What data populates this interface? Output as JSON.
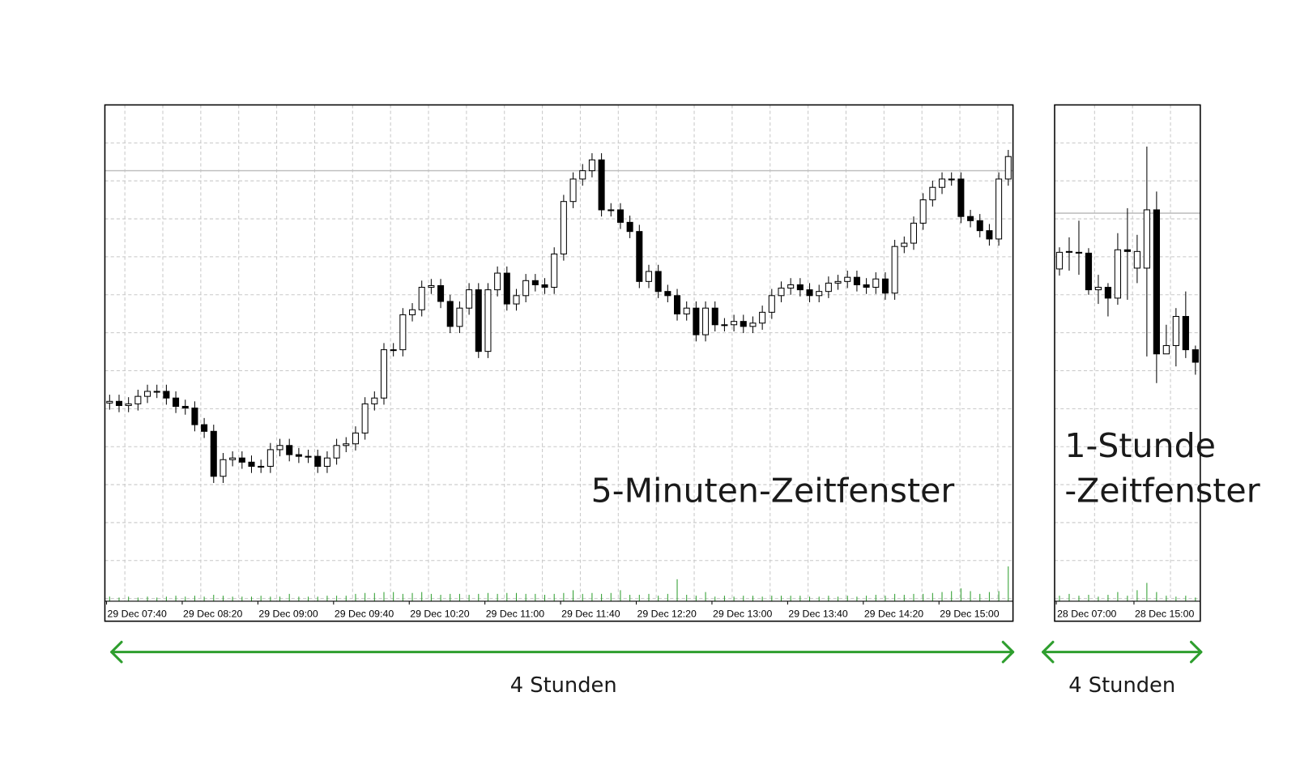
{
  "chart_data": [
    {
      "type": "candlestick",
      "annotation": "5-Minuten-Zeitfenster",
      "span_label": "4 Stunden",
      "categories": [
        "29 Dec 07:40",
        null,
        null,
        null,
        null,
        null,
        null,
        null,
        "29 Dec 08:20",
        null,
        null,
        null,
        null,
        null,
        null,
        null,
        "29 Dec 09:00",
        null,
        null,
        null,
        null,
        null,
        null,
        null,
        "29 Dec 09:40",
        null,
        null,
        null,
        null,
        null,
        null,
        null,
        "29 Dec 10:20",
        null,
        null,
        null,
        null,
        null,
        null,
        null,
        "29 Dec 11:00",
        null,
        null,
        null,
        null,
        null,
        null,
        null,
        "29 Dec 11:40",
        null,
        null,
        null,
        null,
        null,
        null,
        null,
        "29 Dec 12:20",
        null,
        null,
        null,
        null,
        null,
        null,
        null,
        "29 Dec 13:00",
        null,
        null,
        null,
        null,
        null,
        null,
        null,
        "29 Dec 13:40",
        null,
        null,
        null,
        null,
        null,
        null,
        null,
        "29 Dec 14:20",
        null,
        null,
        null,
        null,
        null,
        null,
        null,
        "29 Dec 15:00",
        null,
        null,
        null,
        null,
        null,
        null,
        null
      ],
      "open": [
        23.8,
        24.0,
        23.5,
        23.7,
        24.6,
        25.2,
        25.2,
        24.4,
        23.4,
        23.2,
        21.2,
        20.4,
        15.0,
        17.0,
        17.2,
        16.7,
        16.2,
        16.2,
        18.2,
        18.7,
        17.6,
        17.4,
        17.4,
        16.2,
        17.2,
        18.7,
        18.9,
        20.2,
        23.7,
        24.4,
        30.2,
        30.2,
        34.4,
        35.0,
        37.7,
        37.9,
        36.0,
        33.0,
        35.2,
        37.4,
        30.0,
        37.4,
        39.4,
        35.7,
        36.7,
        38.5,
        38.0,
        37.7,
        41.7,
        48.0,
        50.7,
        51.7,
        53.0,
        47.0,
        47.0,
        45.5,
        44.4,
        38.4,
        39.6,
        37.2,
        36.7,
        34.5,
        35.2,
        32.0,
        35.2,
        33.2,
        33.2,
        33.6,
        33.0,
        33.4,
        34.7,
        36.7,
        37.6,
        38.0,
        37.4,
        36.7,
        37.2,
        38.2,
        38.4,
        38.9,
        38.0,
        37.7,
        38.7,
        37.0,
        42.6,
        43.0,
        45.4,
        48.2,
        49.7,
        50.7,
        50.7,
        46.2,
        45.7,
        44.5,
        43.5,
        50.7
      ],
      "high": [
        24.8,
        24.8,
        24.5,
        25.4,
        26.0,
        26.0,
        26.0,
        25.2,
        24.2,
        24.0,
        22.0,
        21.2,
        17.8,
        18.0,
        18.0,
        17.5,
        17.0,
        19.0,
        19.5,
        19.5,
        18.4,
        18.2,
        18.2,
        18.0,
        19.5,
        19.7,
        21.0,
        24.5,
        25.2,
        31.0,
        31.0,
        35.2,
        35.8,
        38.5,
        38.7,
        38.7,
        36.8,
        36.0,
        38.2,
        38.2,
        38.2,
        40.2,
        40.2,
        37.5,
        39.3,
        39.3,
        38.8,
        42.5,
        48.8,
        51.5,
        52.5,
        53.8,
        53.8,
        47.8,
        47.8,
        46.3,
        45.2,
        40.4,
        40.4,
        38.0,
        37.5,
        36.0,
        36.0,
        36.0,
        36.0,
        34.0,
        34.4,
        34.4,
        34.2,
        35.5,
        37.5,
        38.4,
        38.8,
        38.8,
        38.2,
        38.0,
        39.0,
        39.2,
        39.7,
        39.7,
        38.8,
        39.5,
        39.5,
        43.4,
        43.8,
        46.2,
        49.0,
        50.5,
        51.5,
        51.5,
        51.5,
        47.0,
        46.5,
        45.3,
        51.5,
        54.2
      ],
      "low": [
        23.0,
        22.7,
        22.7,
        22.9,
        23.8,
        24.4,
        23.6,
        22.6,
        22.4,
        20.4,
        19.6,
        14.2,
        14.2,
        16.2,
        15.9,
        15.4,
        15.4,
        15.4,
        17.4,
        16.8,
        16.6,
        16.6,
        15.4,
        15.4,
        16.4,
        17.9,
        18.1,
        19.4,
        22.9,
        23.6,
        29.4,
        29.4,
        33.6,
        34.2,
        36.9,
        35.2,
        32.2,
        32.2,
        34.4,
        29.2,
        29.2,
        36.6,
        34.9,
        34.9,
        35.9,
        37.2,
        36.9,
        36.9,
        40.9,
        47.2,
        49.9,
        50.9,
        46.2,
        46.2,
        44.7,
        43.6,
        37.6,
        37.6,
        36.4,
        35.9,
        33.7,
        33.7,
        31.2,
        31.2,
        32.4,
        32.4,
        32.4,
        32.2,
        32.2,
        32.6,
        33.9,
        35.9,
        36.8,
        36.6,
        35.9,
        35.9,
        36.4,
        37.4,
        37.6,
        37.2,
        36.9,
        36.9,
        36.2,
        36.2,
        41.8,
        42.2,
        44.6,
        47.4,
        48.9,
        49.9,
        45.4,
        44.9,
        43.7,
        42.7,
        42.7,
        49.9
      ],
      "close": [
        24.0,
        23.5,
        23.7,
        24.6,
        25.2,
        25.2,
        24.4,
        23.4,
        23.2,
        21.2,
        20.4,
        15.0,
        17.0,
        17.2,
        16.7,
        16.2,
        16.2,
        18.2,
        18.7,
        17.6,
        17.4,
        17.4,
        16.2,
        17.2,
        18.7,
        18.9,
        20.2,
        23.7,
        24.4,
        30.2,
        30.2,
        34.4,
        35.0,
        37.7,
        37.9,
        36.0,
        33.0,
        35.2,
        37.4,
        30.0,
        37.4,
        39.4,
        35.7,
        36.7,
        38.5,
        38.0,
        37.7,
        41.7,
        48.0,
        50.7,
        51.7,
        53.0,
        47.0,
        47.0,
        45.5,
        44.4,
        38.4,
        39.6,
        37.2,
        36.7,
        34.5,
        35.2,
        32.0,
        35.2,
        33.2,
        33.2,
        33.6,
        33.0,
        33.4,
        34.7,
        36.7,
        37.6,
        38.0,
        37.4,
        36.7,
        37.2,
        38.2,
        38.4,
        38.9,
        38.0,
        37.7,
        38.7,
        37.0,
        42.6,
        43.0,
        45.4,
        48.2,
        49.7,
        50.7,
        50.7,
        46.2,
        45.7,
        44.5,
        43.5,
        50.7,
        53.4
      ],
      "volume": [
        5,
        4,
        5,
        4,
        5,
        4,
        5,
        6,
        5,
        6,
        5,
        7,
        6,
        5,
        5,
        5,
        6,
        5,
        5,
        8,
        5,
        5,
        5,
        6,
        6,
        6,
        8,
        9,
        9,
        10,
        10,
        8,
        9,
        10,
        8,
        7,
        8,
        8,
        7,
        8,
        9,
        8,
        9,
        9,
        8,
        8,
        7,
        8,
        9,
        12,
        8,
        9,
        8,
        9,
        12,
        7,
        7,
        8,
        6,
        8,
        24,
        7,
        6,
        10,
        5,
        6,
        5,
        6,
        6,
        5,
        6,
        6,
        6,
        6,
        5,
        5,
        6,
        5,
        6,
        5,
        6,
        7,
        6,
        8,
        7,
        8,
        8,
        9,
        10,
        11,
        14,
        11,
        8,
        10,
        11,
        38
      ],
      "hline": 51.7,
      "ylim": [
        0,
        59.6
      ],
      "grid": true,
      "up_color": "#ffffff",
      "down_color": "#000000",
      "volume_color": "#2e9e2e"
    },
    {
      "type": "candlestick",
      "annotation": [
        "1-Stunde",
        "-Zeitfenster"
      ],
      "span_label": "4 Stunden",
      "categories": [
        "28 Dec 07:00",
        null,
        null,
        null,
        null,
        null,
        null,
        null,
        "28 Dec 15:00",
        null,
        null,
        null,
        null,
        null,
        null
      ],
      "open": [
        39.9,
        42.0,
        41.9,
        41.8,
        37.4,
        37.7,
        36.4,
        42.2,
        40.0,
        40.0,
        47.0,
        29.7,
        30.7,
        34.2,
        30.2
      ],
      "high": [
        42.5,
        43.7,
        45.7,
        42.4,
        39.2,
        38.2,
        44.2,
        47.2,
        44.0,
        54.6,
        49.2,
        33.2,
        35.2,
        37.2,
        30.7
      ],
      "low": [
        39.1,
        39.7,
        39.2,
        36.8,
        35.7,
        34.2,
        35.6,
        36.2,
        38.2,
        29.4,
        26.2,
        29.7,
        28.2,
        29.2,
        27.2
      ],
      "close": [
        41.9,
        41.9,
        41.8,
        37.4,
        37.7,
        36.4,
        42.2,
        42.0,
        42.0,
        47.0,
        29.7,
        30.7,
        34.2,
        30.2,
        28.7
      ],
      "volume": [
        6,
        8,
        6,
        7,
        5,
        7,
        10,
        6,
        12,
        20,
        10,
        6,
        5,
        6,
        4
      ],
      "hline": 46.6,
      "ylim": [
        0,
        59.6
      ],
      "grid": true,
      "up_color": "#ffffff",
      "down_color": "#000000",
      "volume_color": "#2e9e2e"
    }
  ]
}
